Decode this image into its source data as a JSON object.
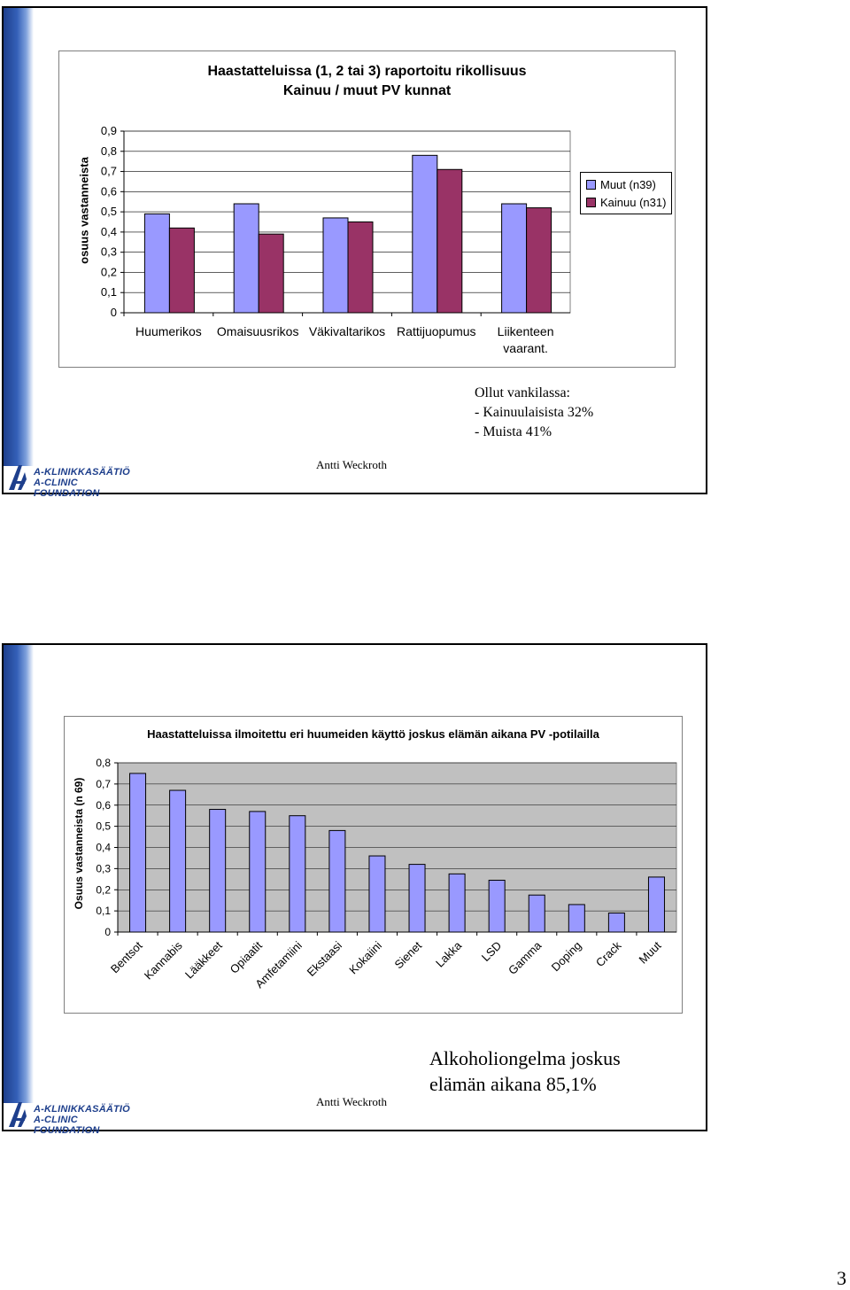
{
  "slide1": {
    "chart_data": {
      "type": "bar",
      "title": "Haastatteluissa (1, 2 tai 3) raportoitu rikollisuus\nKainuu / muut PV kunnat",
      "title_line1": "Haastatteluissa (1, 2 tai 3) raportoitu rikollisuus",
      "title_line2": "Kainuu / muut PV kunnat",
      "ylabel": "osuus vastanneista",
      "xlabel": "",
      "ylim": [
        0,
        0.9
      ],
      "yticks": [
        "0",
        "0,1",
        "0,2",
        "0,3",
        "0,4",
        "0,5",
        "0,6",
        "0,7",
        "0,8",
        "0,9"
      ],
      "categories": [
        "Huumerikos",
        "Omaisuusrikos",
        "Väkivaltarikos",
        "Rattijuopumus",
        "Liikenteen vaarant."
      ],
      "category_lines": [
        [
          "Huumerikos"
        ],
        [
          "Omaisuusrikos"
        ],
        [
          "Väkivaltarikos"
        ],
        [
          "Rattijuopumus"
        ],
        [
          "Liikenteen",
          "vaarant."
        ]
      ],
      "series": [
        {
          "name": "Muut (n39)",
          "color": "#9999ff",
          "values": [
            0.49,
            0.54,
            0.47,
            0.78,
            0.54
          ]
        },
        {
          "name": "Kainuu (n31)",
          "color": "#993366",
          "values": [
            0.42,
            0.39,
            0.45,
            0.71,
            0.52
          ]
        }
      ],
      "legend": "right",
      "grid": true
    },
    "note": {
      "line1": "Ollut vankilassa:",
      "line2": "- Kainuulaisista 32%",
      "line3": "- Muista 41%"
    },
    "author": "Antti Weckroth",
    "logo_line1": "A-KLINIKKASÄÄTIÖ",
    "logo_line2": "A-CLINIC FOUNDATION"
  },
  "slide2": {
    "chart_data": {
      "type": "bar",
      "title": "Haastatteluissa ilmoitettu eri huumeiden käyttö joskus elämän aikana PV -potilailla",
      "ylabel": "Osuus vastanneista (n 69)",
      "xlabel": "",
      "ylim": [
        0,
        0.8
      ],
      "yticks": [
        "0",
        "0,1",
        "0,2",
        "0,3",
        "0,4",
        "0,5",
        "0,6",
        "0,7",
        "0,8"
      ],
      "categories": [
        "Bentsot",
        "Kannabis",
        "Lääkkeet",
        "Opiaatit",
        "Amfetamiini",
        "Ekstaasi",
        "Kokaiini",
        "Sienet",
        "Lakka",
        "LSD",
        "Gamma",
        "Doping",
        "Crack",
        "Muut"
      ],
      "series": [
        {
          "color": "#9999ff",
          "values": [
            0.75,
            0.67,
            0.58,
            0.57,
            0.55,
            0.48,
            0.36,
            0.32,
            0.275,
            0.245,
            0.175,
            0.13,
            0.09,
            0.26
          ]
        }
      ],
      "grid": true
    },
    "note": {
      "line1": "Alkoholiongelma joskus",
      "line2": "elämän aikana 85,1%"
    },
    "author": "Antti Weckroth",
    "logo_line1": "A-KLINIKKASÄÄTIÖ",
    "logo_line2": "A-CLINIC FOUNDATION"
  },
  "page_number": "3"
}
